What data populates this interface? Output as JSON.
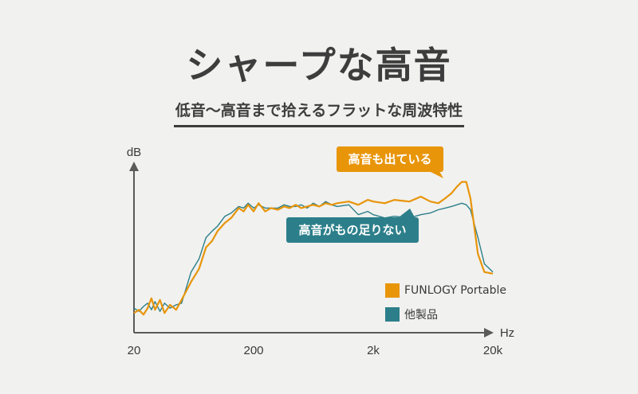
{
  "header": {
    "title": "シャープな高音",
    "subtitle": "低音〜高音まで拾えるフラットな周波特性"
  },
  "callouts": {
    "funlogy": "高音も出ている",
    "other": "高音がもの足りない"
  },
  "chart_data": {
    "type": "line",
    "xlabel": "Hz",
    "ylabel": "dB",
    "x_scale": "log",
    "xlim": [
      20,
      20000
    ],
    "ylim": [
      0,
      100
    ],
    "x_ticks": [
      {
        "value": 20,
        "label": "20"
      },
      {
        "value": 200,
        "label": "200"
      },
      {
        "value": 2000,
        "label": "2k"
      },
      {
        "value": 20000,
        "label": "20k"
      }
    ],
    "grid": false,
    "legend_position": "bottom-right",
    "series": [
      {
        "name": "FUNLOGY Portable",
        "color": "#e8950a",
        "x": [
          20,
          22,
          24,
          26,
          28,
          30,
          33,
          36,
          40,
          45,
          50,
          60,
          70,
          80,
          90,
          100,
          115,
          130,
          150,
          165,
          180,
          200,
          220,
          250,
          280,
          320,
          360,
          400,
          450,
          500,
          560,
          630,
          710,
          800,
          900,
          1000,
          1250,
          1500,
          1800,
          2000,
          2500,
          3000,
          4000,
          5000,
          6000,
          7000,
          8000,
          9000,
          10000,
          11000,
          12000,
          13000,
          15000,
          17000,
          20000
        ],
        "y": [
          12,
          14,
          11,
          15,
          21,
          14,
          20,
          12,
          17,
          14,
          20,
          31,
          39,
          52,
          56,
          62,
          67,
          70,
          76,
          74,
          78,
          74,
          79,
          74,
          76,
          75,
          77,
          76,
          78,
          76,
          77,
          78,
          77,
          79,
          78,
          79,
          80,
          78,
          81,
          80,
          79,
          81,
          80,
          83,
          80,
          79,
          82,
          85,
          89,
          92,
          92,
          82,
          48,
          37,
          36
        ]
      },
      {
        "name": "他製品",
        "color": "#2c7f8a",
        "x": [
          20,
          22,
          24,
          26,
          28,
          30,
          33,
          36,
          40,
          45,
          50,
          60,
          70,
          80,
          90,
          100,
          115,
          130,
          150,
          165,
          180,
          200,
          220,
          250,
          280,
          320,
          360,
          400,
          450,
          500,
          560,
          630,
          710,
          800,
          900,
          1000,
          1250,
          1500,
          1800,
          2000,
          2500,
          3000,
          4000,
          5000,
          6000,
          7000,
          8000,
          9000,
          10000,
          11000,
          12000,
          13000,
          15000,
          17000,
          20000
        ],
        "y": [
          15,
          13,
          16,
          18,
          14,
          19,
          13,
          18,
          15,
          17,
          18,
          37,
          45,
          58,
          62,
          65,
          71,
          73,
          77,
          76,
          79,
          76,
          78,
          76,
          76,
          76,
          78,
          77,
          77,
          78,
          76,
          79,
          77,
          80,
          78,
          77,
          78,
          72,
          74,
          72,
          70,
          71,
          70,
          72,
          73,
          75,
          76,
          77,
          78,
          79,
          78,
          75,
          58,
          42,
          37
        ]
      }
    ]
  }
}
